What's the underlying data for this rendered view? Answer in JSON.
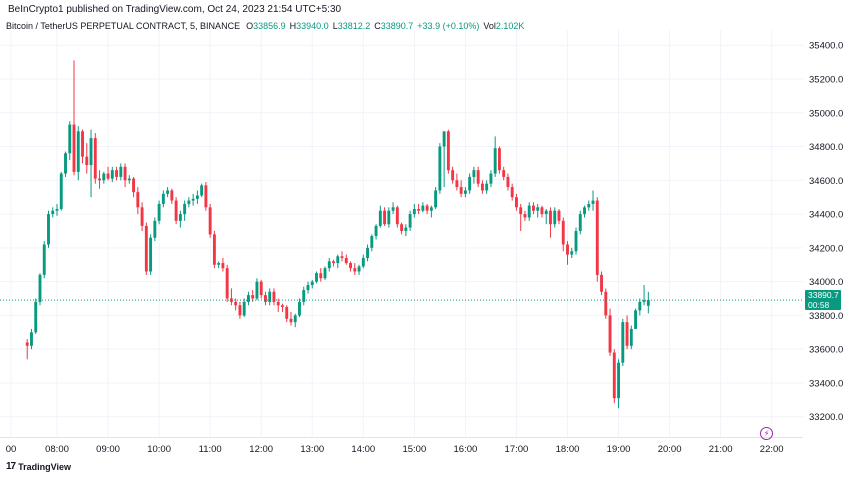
{
  "header": {
    "published": "BeInCrypto1 published on TradingView.com, Oct 24, 2023 21:54 UTC+5:30",
    "symbol": "Bitcoin / TetherUS PERPETUAL CONTRACT, 5, BINANCE",
    "o_label": "O",
    "o_value": "33856.9",
    "h_label": "H",
    "h_value": "33940.0",
    "l_label": "L",
    "l_value": "33812.2",
    "c_label": "C",
    "c_value": "33890.7",
    "change": "+33.9 (+0.10%)",
    "vol_label": "Vol",
    "vol_value": "2.102K"
  },
  "price_tag": {
    "price": "33890.7",
    "countdown": "00:58"
  },
  "brand": {
    "logo": "17",
    "name": "TradingView"
  },
  "colors": {
    "up": "#089981",
    "down": "#F23645",
    "last_line": "#089981",
    "grid": "#f0f3fa"
  },
  "icons": {
    "brand": "tradingview-logo-icon",
    "alert": "lightning-bolt-icon"
  },
  "chart_data": {
    "type": "candlestick",
    "x_ticks": [
      "00",
      "08:00",
      "09:00",
      "10:00",
      "11:00",
      "12:00",
      "13:00",
      "14:00",
      "15:00",
      "16:00",
      "17:00",
      "18:00",
      "19:00",
      "20:00",
      "21:00",
      "22:00"
    ],
    "y_ticks": [
      "35400.0",
      "35200.0",
      "35000.0",
      "34800.0",
      "34600.0",
      "34400.0",
      "34200.0",
      "34000.0",
      "33800.0",
      "33600.0",
      "33400.0",
      "33200.0"
    ],
    "y_tick_values": [
      35400,
      35200,
      35000,
      34800,
      34600,
      34400,
      34200,
      34000,
      33800,
      33600,
      33400,
      33200
    ],
    "ylim": [
      33080,
      35490
    ],
    "last_price": 33890.7,
    "start_time": "07:25",
    "interval_minutes": 5,
    "candles": [
      [
        33640,
        33660,
        33540,
        33620
      ],
      [
        33620,
        33720,
        33600,
        33700
      ],
      [
        33700,
        33900,
        33690,
        33880
      ],
      [
        33880,
        34050,
        33860,
        34040
      ],
      [
        34040,
        34240,
        34020,
        34220
      ],
      [
        34220,
        34420,
        34200,
        34400
      ],
      [
        34400,
        34440,
        34380,
        34420
      ],
      [
        34420,
        34460,
        34390,
        34430
      ],
      [
        34430,
        34650,
        34420,
        34640
      ],
      [
        34640,
        34770,
        34620,
        34760
      ],
      [
        34760,
        34950,
        34720,
        34930
      ],
      [
        34930,
        35310,
        34630,
        34650
      ],
      [
        34650,
        34920,
        34600,
        34890
      ],
      [
        34890,
        34900,
        34700,
        34740
      ],
      [
        34740,
        34820,
        34640,
        34690
      ],
      [
        34690,
        34900,
        34500,
        34850
      ],
      [
        34850,
        34880,
        34580,
        34610
      ],
      [
        34610,
        34660,
        34550,
        34600
      ],
      [
        34600,
        34650,
        34580,
        34640
      ],
      [
        34640,
        34680,
        34600,
        34610
      ],
      [
        34610,
        34680,
        34590,
        34660
      ],
      [
        34660,
        34680,
        34600,
        34620
      ],
      [
        34620,
        34700,
        34600,
        34680
      ],
      [
        34680,
        34700,
        34560,
        34600
      ],
      [
        34600,
        34630,
        34580,
        34610
      ],
      [
        34610,
        34620,
        34500,
        34530
      ],
      [
        34530,
        34560,
        34400,
        34440
      ],
      [
        34440,
        34470,
        34300,
        34330
      ],
      [
        34330,
        34350,
        34040,
        34060
      ],
      [
        34060,
        34280,
        34040,
        34260
      ],
      [
        34260,
        34380,
        34240,
        34360
      ],
      [
        34360,
        34480,
        34340,
        34460
      ],
      [
        34460,
        34540,
        34440,
        34520
      ],
      [
        34520,
        34560,
        34500,
        34540
      ],
      [
        34540,
        34550,
        34460,
        34480
      ],
      [
        34480,
        34500,
        34340,
        34360
      ],
      [
        34360,
        34420,
        34320,
        34400
      ],
      [
        34400,
        34480,
        34360,
        34460
      ],
      [
        34460,
        34500,
        34440,
        34480
      ],
      [
        34480,
        34520,
        34450,
        34490
      ],
      [
        34490,
        34540,
        34460,
        34510
      ],
      [
        34510,
        34580,
        34500,
        34570
      ],
      [
        34570,
        34590,
        34420,
        34440
      ],
      [
        34440,
        34460,
        34260,
        34280
      ],
      [
        34280,
        34300,
        34080,
        34100
      ],
      [
        34100,
        34120,
        34080,
        34110
      ],
      [
        34110,
        34140,
        34060,
        34080
      ],
      [
        34080,
        34100,
        33880,
        33900
      ],
      [
        33900,
        33960,
        33860,
        33880
      ],
      [
        33880,
        33900,
        33830,
        33860
      ],
      [
        33860,
        33880,
        33780,
        33800
      ],
      [
        33800,
        33900,
        33790,
        33880
      ],
      [
        33880,
        33940,
        33860,
        33920
      ],
      [
        33920,
        33950,
        33880,
        33900
      ],
      [
        33900,
        34020,
        33890,
        34000
      ],
      [
        34000,
        34010,
        33900,
        33920
      ],
      [
        33920,
        33940,
        33860,
        33880
      ],
      [
        33880,
        33960,
        33860,
        33940
      ],
      [
        33940,
        33960,
        33860,
        33880
      ],
      [
        33880,
        33900,
        33820,
        33860
      ],
      [
        33860,
        33870,
        33820,
        33850
      ],
      [
        33850,
        33860,
        33760,
        33780
      ],
      [
        33780,
        33820,
        33740,
        33760
      ],
      [
        33760,
        33810,
        33730,
        33800
      ],
      [
        33800,
        33900,
        33790,
        33880
      ],
      [
        33880,
        33970,
        33860,
        33950
      ],
      [
        33950,
        34000,
        33930,
        33980
      ],
      [
        33980,
        34010,
        33960,
        34000
      ],
      [
        34000,
        34060,
        33990,
        34050
      ],
      [
        34050,
        34080,
        34000,
        34020
      ],
      [
        34020,
        34090,
        34010,
        34080
      ],
      [
        34080,
        34140,
        34060,
        34120
      ],
      [
        34120,
        34130,
        34090,
        34110
      ],
      [
        34110,
        34160,
        34080,
        34150
      ],
      [
        34150,
        34180,
        34120,
        34140
      ],
      [
        34140,
        34160,
        34100,
        34110
      ],
      [
        34110,
        34120,
        34060,
        34080
      ],
      [
        34080,
        34110,
        34040,
        34060
      ],
      [
        34060,
        34100,
        34040,
        34090
      ],
      [
        34090,
        34160,
        34080,
        34140
      ],
      [
        34140,
        34220,
        34120,
        34200
      ],
      [
        34200,
        34280,
        34180,
        34270
      ],
      [
        34270,
        34340,
        34250,
        34330
      ],
      [
        34330,
        34450,
        34320,
        34420
      ],
      [
        34420,
        34440,
        34330,
        34340
      ],
      [
        34340,
        34440,
        34320,
        34420
      ],
      [
        34420,
        34470,
        34400,
        34440
      ],
      [
        34440,
        34450,
        34320,
        34340
      ],
      [
        34340,
        34350,
        34280,
        34300
      ],
      [
        34300,
        34340,
        34270,
        34320
      ],
      [
        34320,
        34420,
        34300,
        34400
      ],
      [
        34400,
        34460,
        34380,
        34430
      ],
      [
        34430,
        34460,
        34400,
        34420
      ],
      [
        34420,
        34470,
        34410,
        34450
      ],
      [
        34450,
        34460,
        34400,
        34420
      ],
      [
        34420,
        34450,
        34380,
        34440
      ],
      [
        34440,
        34560,
        34430,
        34540
      ],
      [
        34540,
        34820,
        34520,
        34800
      ],
      [
        34800,
        34890,
        34560,
        34890
      ],
      [
        34890,
        34900,
        34640,
        34660
      ],
      [
        34660,
        34680,
        34580,
        34600
      ],
      [
        34600,
        34640,
        34540,
        34560
      ],
      [
        34560,
        34600,
        34500,
        34520
      ],
      [
        34520,
        34560,
        34500,
        34540
      ],
      [
        34540,
        34640,
        34520,
        34620
      ],
      [
        34620,
        34680,
        34580,
        34660
      ],
      [
        34660,
        34680,
        34560,
        34580
      ],
      [
        34580,
        34600,
        34520,
        34540
      ],
      [
        34540,
        34600,
        34520,
        34580
      ],
      [
        34580,
        34660,
        34560,
        34640
      ],
      [
        34640,
        34860,
        34620,
        34790
      ],
      [
        34790,
        34800,
        34640,
        34660
      ],
      [
        34660,
        34680,
        34600,
        34620
      ],
      [
        34620,
        34640,
        34540,
        34560
      ],
      [
        34560,
        34580,
        34480,
        34500
      ],
      [
        34500,
        34520,
        34420,
        34440
      ],
      [
        34440,
        34460,
        34300,
        34400
      ],
      [
        34400,
        34420,
        34360,
        34380
      ],
      [
        34380,
        34470,
        34360,
        34450
      ],
      [
        34450,
        34470,
        34400,
        34420
      ],
      [
        34420,
        34460,
        34380,
        34440
      ],
      [
        34440,
        34450,
        34380,
        34400
      ],
      [
        34400,
        34430,
        34340,
        34420
      ],
      [
        34420,
        34440,
        34260,
        34340
      ],
      [
        34340,
        34440,
        34320,
        34420
      ],
      [
        34420,
        34430,
        34340,
        34360
      ],
      [
        34360,
        34380,
        34180,
        34220
      ],
      [
        34220,
        34240,
        34100,
        34160
      ],
      [
        34160,
        34200,
        34140,
        34180
      ],
      [
        34180,
        34320,
        34160,
        34300
      ],
      [
        34300,
        34420,
        34280,
        34400
      ],
      [
        34400,
        34450,
        34380,
        34440
      ],
      [
        34440,
        34480,
        34420,
        34460
      ],
      [
        34460,
        34540,
        34420,
        34480
      ],
      [
        34480,
        34500,
        34000,
        34040
      ],
      [
        34040,
        34060,
        33920,
        33940
      ],
      [
        33940,
        33960,
        33780,
        33800
      ],
      [
        33800,
        33840,
        33560,
        33580
      ],
      [
        33580,
        33600,
        33280,
        33310
      ],
      [
        33310,
        33540,
        33250,
        33520
      ],
      [
        33520,
        33780,
        33500,
        33760
      ],
      [
        33760,
        33800,
        33600,
        33620
      ],
      [
        33620,
        33740,
        33600,
        33720
      ],
      [
        33720,
        33840,
        33720,
        33830
      ],
      [
        33830,
        33900,
        33800,
        33880
      ],
      [
        33880,
        33980,
        33860,
        33890
      ],
      [
        33857,
        33940,
        33812,
        33891
      ]
    ]
  }
}
